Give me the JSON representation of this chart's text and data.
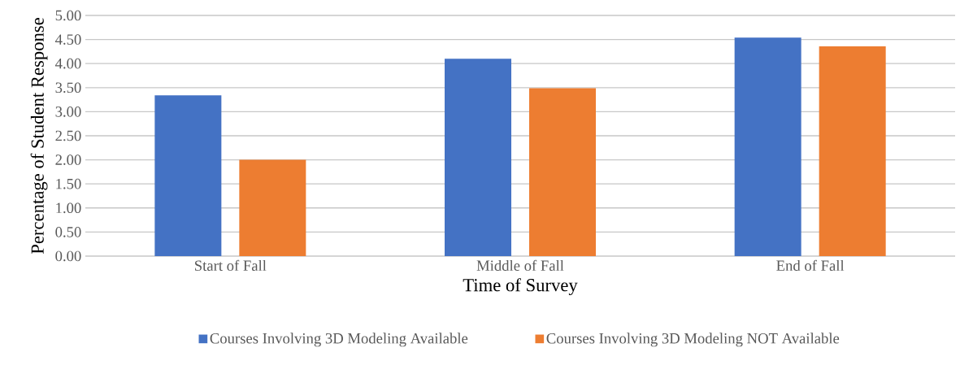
{
  "chart_data": {
    "type": "bar",
    "xlabel": "Time of Survey",
    "ylabel": "Percentage of Student Response",
    "categories": [
      "Start of Fall",
      "Middle of Fall",
      "End of Fall"
    ],
    "series": [
      {
        "name": "Courses Involving 3D Modeling Available",
        "color": "#4472c4",
        "values": [
          3.34,
          4.1,
          4.54
        ]
      },
      {
        "name": "Courses Involving 3D Modeling NOT Available",
        "color": "#ed7d31",
        "values": [
          2.0,
          3.49,
          4.36
        ]
      }
    ],
    "ylim": [
      0,
      5
    ],
    "yticks": [
      {
        "value": 0,
        "label": "0.00"
      },
      {
        "value": 0.5,
        "label": "0.50"
      },
      {
        "value": 1,
        "label": "1.00"
      },
      {
        "value": 1.5,
        "label": "1.50"
      },
      {
        "value": 2,
        "label": "2.00"
      },
      {
        "value": 2.5,
        "label": "2.50"
      },
      {
        "value": 3,
        "label": "3.00"
      },
      {
        "value": 3.5,
        "label": "3.50"
      },
      {
        "value": 4,
        "label": "4.00"
      },
      {
        "value": 4.5,
        "label": "4.50"
      },
      {
        "value": 5,
        "label": "5.00"
      }
    ],
    "grid": "y",
    "legend": "bottom"
  }
}
